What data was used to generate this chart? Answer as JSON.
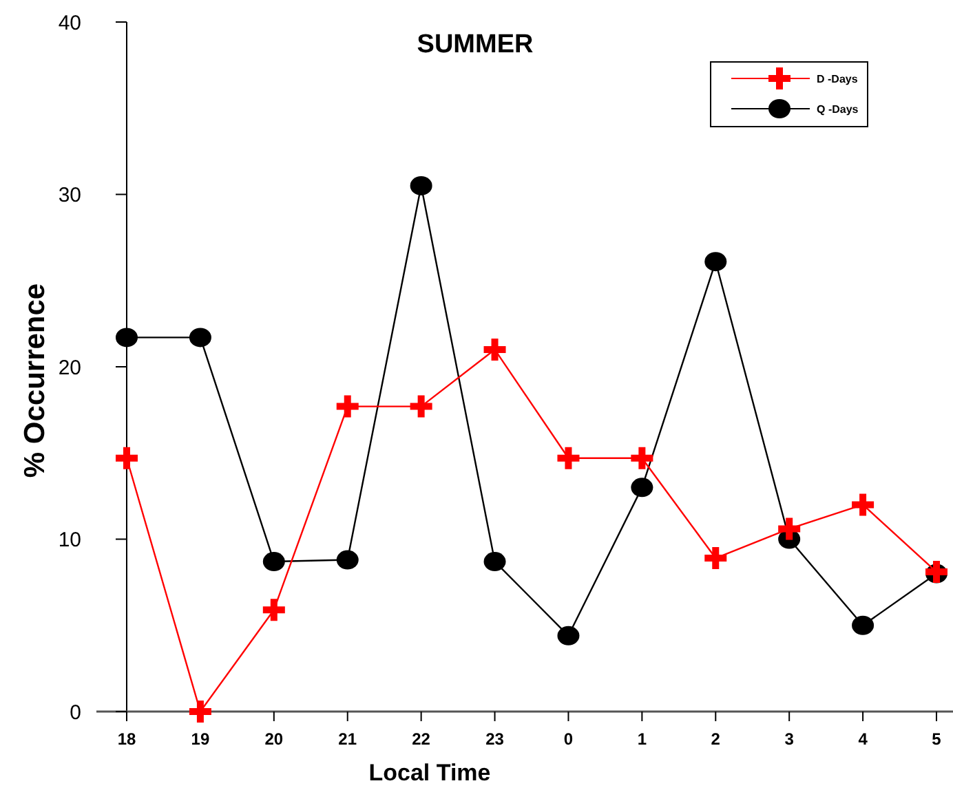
{
  "chart_data": {
    "type": "line",
    "title": "SUMMER",
    "xlabel": "Local Time",
    "ylabel": "% Occurrence",
    "categories": [
      "18",
      "19",
      "20",
      "21",
      "22",
      "23",
      "0",
      "1",
      "2",
      "3",
      "4",
      "5"
    ],
    "series": [
      {
        "name": "D -Days",
        "color": "#ff0000",
        "marker": "cross",
        "values": [
          14.7,
          0,
          5.9,
          17.7,
          17.7,
          21.0,
          14.7,
          14.7,
          8.9,
          10.6,
          12.0,
          8.1
        ]
      },
      {
        "name": "Q -Days",
        "color": "#000000",
        "marker": "circle",
        "values": [
          21.7,
          21.7,
          8.7,
          8.8,
          30.5,
          8.7,
          4.4,
          13.0,
          26.1,
          10.0,
          5.0,
          8.0
        ]
      }
    ],
    "ylim": [
      0,
      40
    ],
    "yticks": [
      0,
      10,
      20,
      30,
      40
    ],
    "grid": false,
    "legend": "top right",
    "line_style": "solid"
  }
}
